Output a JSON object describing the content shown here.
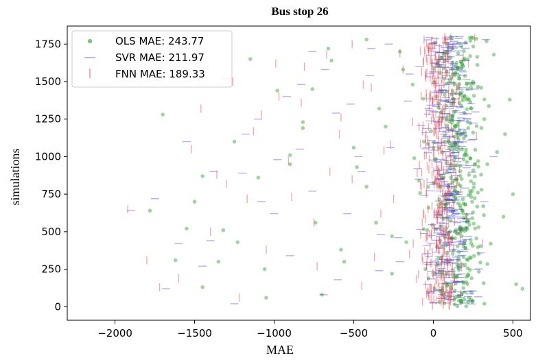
{
  "chart_data": {
    "type": "scatter",
    "title": "Bus stop 26",
    "xlabel": "MAE",
    "ylabel": "simulations",
    "xlim": [
      -2300,
      610
    ],
    "ylim": [
      -90,
      1870
    ],
    "xticks": [
      -2000,
      -1500,
      -1000,
      -500,
      0,
      500
    ],
    "yticks": [
      0,
      250,
      500,
      750,
      1000,
      1250,
      1500,
      1750
    ],
    "xtick_labels": [
      "−2000",
      "−1500",
      "−1000",
      "−500",
      "0",
      "500"
    ],
    "ytick_labels": [
      "0",
      "250",
      "500",
      "750",
      "1000",
      "1250",
      "1500",
      "1750"
    ],
    "grid": false,
    "legend_position": "top-left",
    "series": [
      {
        "name": "OLS MAE: 243.77",
        "marker": "circle",
        "color": "#2ca02c",
        "cluster_center": 150,
        "cluster_spread": 160,
        "x": [
          -1780,
          -1500,
          -1620,
          -1450,
          -1320,
          -1230,
          -1100,
          -1050,
          -900,
          -820,
          -760,
          -700,
          -640,
          -560,
          -480,
          -420,
          -360,
          -300,
          -260,
          -210,
          -170,
          -130,
          -90,
          -60,
          -30,
          10,
          40,
          80,
          110,
          140,
          180,
          210,
          250,
          280,
          320,
          360,
          400,
          440,
          480,
          520,
          560,
          500,
          450,
          380,
          300,
          230,
          160,
          90,
          20,
          -50,
          -120,
          -190,
          -260,
          -340,
          -420,
          -500,
          -580,
          -660,
          -740,
          -820,
          -900,
          -980,
          -1060,
          -1150,
          -1250,
          -1350,
          -1450,
          -1550,
          -1700
        ],
        "y": [
          640,
          700,
          310,
          130,
          510,
          430,
          860,
          60,
          1010,
          1230,
          1450,
          80,
          1640,
          300,
          930,
          1780,
          560,
          1200,
          220,
          1700,
          430,
          1480,
          840,
          1100,
          660,
          1760,
          30,
          1340,
          950,
          510,
          1620,
          200,
          1790,
          760,
          1250,
          420,
          1030,
          600,
          1380,
          150,
          120,
          750,
          1150,
          1680,
          880,
          330,
          1540,
          690,
          1400,
          250,
          990,
          1580,
          470,
          1320,
          800,
          1060,
          380,
          1720,
          560,
          1190,
          950,
          1440,
          250,
          1650,
          1100,
          300,
          870,
          520,
          1280
        ]
      },
      {
        "name": "SVR MAE: 211.97",
        "marker": "hline",
        "color": "#3a3ae8",
        "cluster_center": 90,
        "cluster_spread": 140,
        "x": [
          -1900,
          -1750,
          -1680,
          -1600,
          -1450,
          -1380,
          -1250,
          -1180,
          -1080,
          -980,
          -900,
          -830,
          -760,
          -690,
          -610,
          -540,
          -470,
          -400,
          -340,
          -280,
          -220,
          -160,
          -100,
          -40,
          20,
          80,
          140,
          200,
          260,
          320,
          380,
          330,
          270,
          210,
          150,
          90,
          30,
          -30,
          -90,
          -150,
          -210,
          -270,
          -330,
          -390,
          -450,
          -520,
          -600,
          -680,
          -760,
          -840,
          -920,
          -1000,
          -1100,
          -1200,
          -1300,
          -1400,
          -1550
        ],
        "y": [
          640,
          720,
          120,
          420,
          270,
          900,
          20,
          1150,
          700,
          980,
          340,
          1480,
          1700,
          80,
          1290,
          620,
          1000,
          1540,
          240,
          1750,
          460,
          1370,
          920,
          150,
          1600,
          800,
          1100,
          380,
          1450,
          700,
          1000,
          1780,
          250,
          1250,
          560,
          1650,
          110,
          1320,
          850,
          1550,
          300,
          1060,
          480,
          1720,
          900,
          1350,
          180,
          1580,
          770,
          1050,
          1400,
          620,
          1250,
          890,
          1520,
          440,
          1100
        ]
      },
      {
        "name": "FNN MAE: 189.33",
        "marker": "vline",
        "color": "#e8424a",
        "cluster_center": 40,
        "cluster_spread": 120,
        "x": [
          -1920,
          -1800,
          -1720,
          -1600,
          -1520,
          -1400,
          -1300,
          -1220,
          -1130,
          -1050,
          -970,
          -890,
          -810,
          -730,
          -650,
          -580,
          -510,
          -450,
          -390,
          -330,
          -270,
          -210,
          -150,
          -90,
          -40,
          10,
          60,
          110,
          160,
          210,
          260,
          310,
          270,
          220,
          170,
          120,
          70,
          20,
          -30,
          -80,
          -130,
          -190,
          -250,
          -310,
          -370,
          -440,
          -510,
          -590,
          -670,
          -750,
          -830,
          -910,
          -990,
          -1080,
          -1170,
          -1260,
          -1360,
          -1460
        ],
        "y": [
          650,
          310,
          130,
          190,
          1050,
          500,
          820,
          60,
          1170,
          380,
          1400,
          730,
          1600,
          270,
          900,
          1260,
          1750,
          140,
          1460,
          620,
          1080,
          1690,
          350,
          1200,
          830,
          1520,
          170,
          1000,
          1370,
          600,
          1790,
          420,
          1140,
          1620,
          780,
          270,
          1300,
          940,
          1700,
          480,
          1230,
          1580,
          720,
          1040,
          330,
          1480,
          850,
          1150,
          1680,
          560,
          1360,
          970,
          1620,
          1280,
          720,
          1500,
          880,
          1320
        ]
      }
    ]
  }
}
